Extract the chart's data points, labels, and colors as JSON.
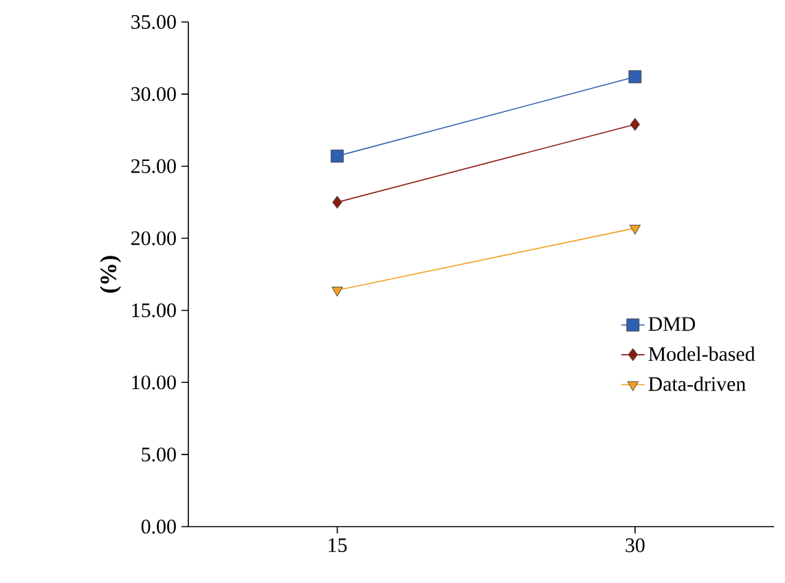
{
  "chart_data": {
    "type": "line",
    "ylabel": "(%)",
    "x": [
      15,
      30
    ],
    "xlim": [
      7.5,
      37
    ],
    "xticks": [
      15,
      30
    ],
    "ylim": [
      0,
      35
    ],
    "yticks": [
      {
        "value": 0,
        "label": "0.00"
      },
      {
        "value": 5,
        "label": "5.00"
      },
      {
        "value": 10,
        "label": "10.00"
      },
      {
        "value": 15,
        "label": "15.00"
      },
      {
        "value": 20,
        "label": "20.00"
      },
      {
        "value": 25,
        "label": "25.00"
      },
      {
        "value": 30,
        "label": "30.00"
      },
      {
        "value": 35,
        "label": "35.00"
      }
    ],
    "series": [
      {
        "name": "DMD",
        "color": "#2e5fb0",
        "values": [
          25.7,
          31.2
        ],
        "marker": "square"
      },
      {
        "name": "Model-based",
        "color": "#8b1a10",
        "values": [
          22.5,
          27.9
        ],
        "marker": "diamond"
      },
      {
        "name": "Data-driven",
        "color": "#f0a020",
        "values": [
          16.4,
          20.7
        ],
        "marker": "triangle"
      }
    ],
    "legend": "right",
    "grid": false,
    "line_style": "solid"
  }
}
